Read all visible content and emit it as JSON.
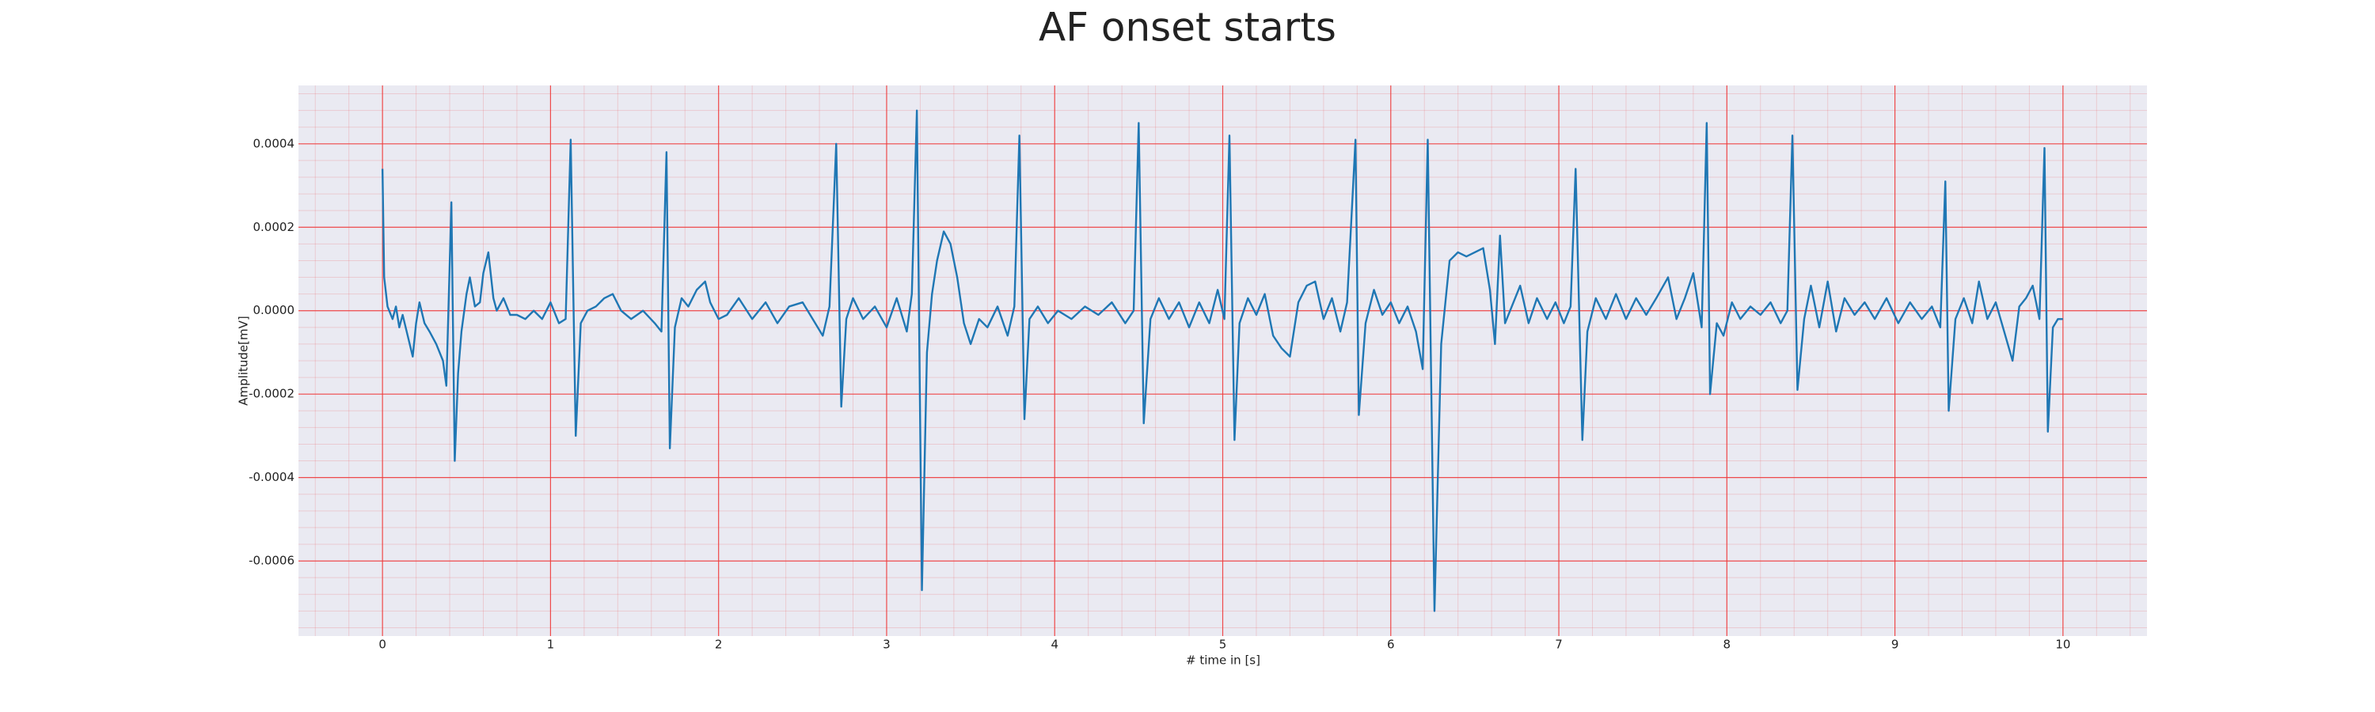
{
  "chart_data": {
    "type": "line",
    "title": "AF onset starts",
    "x_label": "# time in [s]",
    "y_label": "Amplitude[mV]",
    "color": "#1f77b4",
    "grid": true,
    "grid_color": "#f03c3c",
    "minor_grid": true,
    "background": "#eaeaf2",
    "xlim": [
      -0.5,
      10.5
    ],
    "ylim": [
      -0.00078,
      0.00054
    ],
    "xticks": [
      0,
      1,
      2,
      3,
      4,
      5,
      6,
      7,
      8,
      9,
      10
    ],
    "yticks": [
      -0.0006,
      -0.0004,
      -0.0002,
      {
        "value": 0,
        "label": "0.0000"
      },
      0.0002,
      0.0004
    ],
    "x": [
      0,
      0.01,
      0.03,
      0.06,
      0.08,
      0.1,
      0.12,
      0.15,
      0.18,
      0.2,
      0.22,
      0.25,
      0.28,
      0.32,
      0.36,
      0.38,
      0.41,
      0.43,
      0.45,
      0.47,
      0.5,
      0.52,
      0.55,
      0.58,
      0.6,
      0.63,
      0.66,
      0.68,
      0.72,
      0.76,
      0.8,
      0.85,
      0.9,
      0.95,
      1.0,
      1.05,
      1.09,
      1.12,
      1.15,
      1.18,
      1.22,
      1.27,
      1.32,
      1.37,
      1.42,
      1.48,
      1.55,
      1.62,
      1.66,
      1.69,
      1.71,
      1.74,
      1.78,
      1.82,
      1.87,
      1.92,
      1.95,
      2.0,
      2.05,
      2.12,
      2.2,
      2.28,
      2.35,
      2.42,
      2.5,
      2.56,
      2.62,
      2.66,
      2.7,
      2.73,
      2.76,
      2.8,
      2.86,
      2.93,
      3.0,
      3.06,
      3.12,
      3.15,
      3.18,
      3.21,
      3.24,
      3.27,
      3.3,
      3.34,
      3.38,
      3.42,
      3.46,
      3.5,
      3.55,
      3.6,
      3.66,
      3.72,
      3.76,
      3.79,
      3.82,
      3.85,
      3.9,
      3.96,
      4.02,
      4.1,
      4.18,
      4.26,
      4.34,
      4.42,
      4.47,
      4.5,
      4.53,
      4.57,
      4.62,
      4.68,
      4.74,
      4.8,
      4.86,
      4.92,
      4.97,
      5.01,
      5.04,
      5.07,
      5.1,
      5.15,
      5.2,
      5.25,
      5.3,
      5.35,
      5.4,
      5.45,
      5.5,
      5.55,
      5.6,
      5.65,
      5.7,
      5.74,
      5.79,
      5.81,
      5.85,
      5.9,
      5.95,
      6.0,
      6.05,
      6.1,
      6.15,
      6.19,
      6.22,
      6.26,
      6.3,
      6.35,
      6.4,
      6.45,
      6.5,
      6.55,
      6.59,
      6.62,
      6.65,
      6.68,
      6.72,
      6.77,
      6.82,
      6.87,
      6.93,
      6.98,
      7.03,
      7.07,
      7.1,
      7.14,
      7.17,
      7.22,
      7.28,
      7.34,
      7.4,
      7.46,
      7.52,
      7.58,
      7.65,
      7.7,
      7.75,
      7.8,
      7.85,
      7.88,
      7.9,
      7.94,
      7.98,
      8.03,
      8.08,
      8.14,
      8.2,
      8.26,
      8.32,
      8.36,
      8.39,
      8.42,
      8.46,
      8.5,
      8.55,
      8.6,
      8.65,
      8.7,
      8.76,
      8.82,
      8.88,
      8.95,
      9.02,
      9.09,
      9.16,
      9.22,
      9.27,
      9.3,
      9.32,
      9.36,
      9.41,
      9.46,
      9.5,
      9.55,
      9.6,
      9.65,
      9.7,
      9.74,
      9.78,
      9.82,
      9.86,
      9.89,
      9.91,
      9.94,
      9.97,
      10.0
    ],
    "values": [
      0.00034,
      8e-05,
      1e-05,
      -2e-05,
      1e-05,
      -4e-05,
      -1e-05,
      -6e-05,
      -0.00011,
      -3e-05,
      2e-05,
      -3e-05,
      -5e-05,
      -8e-05,
      -0.00012,
      -0.00018,
      0.00026,
      -0.00036,
      -0.00015,
      -5e-05,
      4e-05,
      8e-05,
      1e-05,
      2e-05,
      9e-05,
      0.00014,
      3e-05,
      0,
      3e-05,
      -1e-05,
      -1e-05,
      -2e-05,
      0,
      -2e-05,
      2e-05,
      -3e-05,
      -2e-05,
      0.00041,
      -0.0003,
      -3e-05,
      0,
      1e-05,
      3e-05,
      4e-05,
      0,
      -2e-05,
      0,
      -3e-05,
      -5e-05,
      0.00038,
      -0.00033,
      -4e-05,
      3e-05,
      1e-05,
      5e-05,
      7e-05,
      2e-05,
      -2e-05,
      -1e-05,
      3e-05,
      -2e-05,
      2e-05,
      -3e-05,
      1e-05,
      2e-05,
      -2e-05,
      -6e-05,
      1e-05,
      0.0004,
      -0.00023,
      -2e-05,
      3e-05,
      -2e-05,
      1e-05,
      -4e-05,
      3e-05,
      -5e-05,
      4e-05,
      0.00048,
      -0.00067,
      -0.0001,
      4e-05,
      0.00012,
      0.00019,
      0.00016,
      8e-05,
      -3e-05,
      -8e-05,
      -2e-05,
      -4e-05,
      1e-05,
      -6e-05,
      1e-05,
      0.00042,
      -0.00026,
      -2e-05,
      1e-05,
      -3e-05,
      0,
      -2e-05,
      1e-05,
      -1e-05,
      2e-05,
      -3e-05,
      0,
      0.00045,
      -0.00027,
      -2e-05,
      3e-05,
      -2e-05,
      2e-05,
      -4e-05,
      2e-05,
      -3e-05,
      5e-05,
      -2e-05,
      0.00042,
      -0.00031,
      -3e-05,
      3e-05,
      -1e-05,
      4e-05,
      -6e-05,
      -9e-05,
      -0.00011,
      2e-05,
      6e-05,
      7e-05,
      -2e-05,
      3e-05,
      -5e-05,
      2e-05,
      0.00041,
      -0.00025,
      -3e-05,
      5e-05,
      -1e-05,
      2e-05,
      -3e-05,
      1e-05,
      -5e-05,
      -0.00014,
      0.00041,
      -0.00072,
      -8e-05,
      0.00012,
      0.00014,
      0.00013,
      0.00014,
      0.00015,
      5e-05,
      -8e-05,
      0.00018,
      -3e-05,
      1e-05,
      6e-05,
      -3e-05,
      3e-05,
      -2e-05,
      2e-05,
      -3e-05,
      1e-05,
      0.00034,
      -0.00031,
      -5e-05,
      3e-05,
      -2e-05,
      4e-05,
      -2e-05,
      3e-05,
      -1e-05,
      3e-05,
      8e-05,
      -2e-05,
      3e-05,
      9e-05,
      -4e-05,
      0.00045,
      -0.0002,
      -3e-05,
      -6e-05,
      2e-05,
      -2e-05,
      1e-05,
      -1e-05,
      2e-05,
      -3e-05,
      0,
      0.00042,
      -0.00019,
      -2e-05,
      6e-05,
      -4e-05,
      7e-05,
      -5e-05,
      3e-05,
      -1e-05,
      2e-05,
      -2e-05,
      3e-05,
      -3e-05,
      2e-05,
      -2e-05,
      1e-05,
      -4e-05,
      0.00031,
      -0.00024,
      -2e-05,
      3e-05,
      -3e-05,
      7e-05,
      -2e-05,
      2e-05,
      -5e-05,
      -0.00012,
      1e-05,
      3e-05,
      6e-05,
      -2e-05,
      0.00039,
      -0.00029,
      -4e-05,
      -2e-05,
      -2e-05
    ]
  }
}
